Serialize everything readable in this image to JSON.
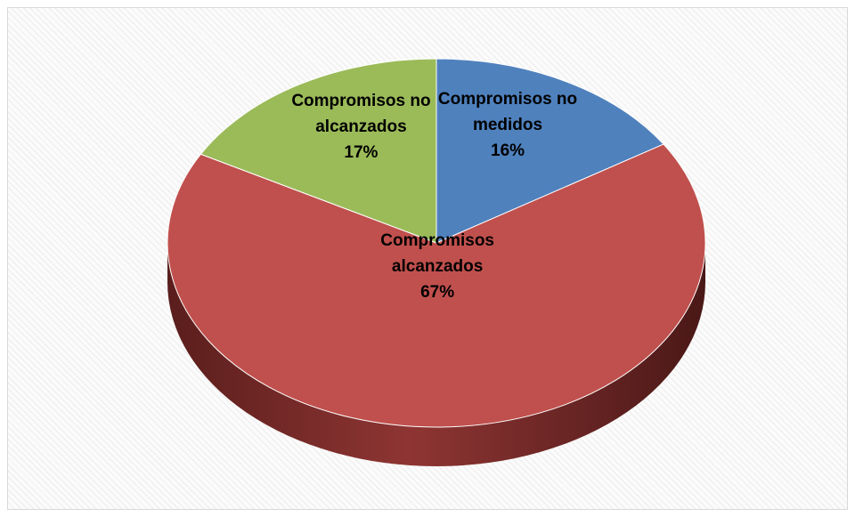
{
  "chart_data": {
    "type": "pie",
    "style": "3d",
    "title": "",
    "legend": "none",
    "slices": [
      {
        "label_lines": [
          "Compromisos no",
          "medidos"
        ],
        "percent_label": "16%",
        "value": 16,
        "color": "#4f81bd"
      },
      {
        "label_lines": [
          "Compromisos",
          "alcanzados"
        ],
        "percent_label": "67%",
        "value": 67,
        "color": "#c0504d"
      },
      {
        "label_lines": [
          "Compromisos no",
          "alcanzados"
        ],
        "percent_label": "17%",
        "value": 17,
        "color": "#9bbb59"
      }
    ]
  }
}
